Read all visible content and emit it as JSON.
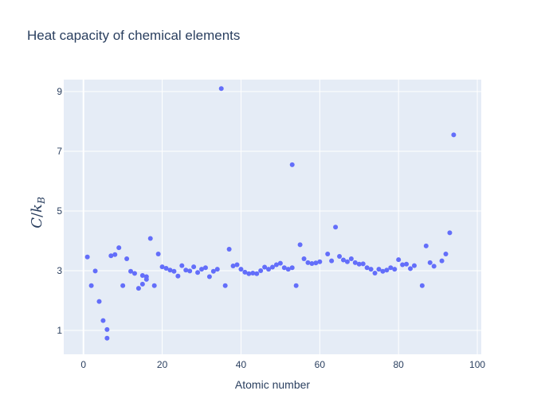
{
  "chart_data": {
    "type": "scatter",
    "title": "Heat capacity of chemical elements",
    "xlabel": "Atomic number",
    "ylabel": "C/k_B",
    "xlim": [
      -5,
      101
    ],
    "ylim": [
      0.2,
      9.4
    ],
    "x_ticks": [
      0,
      20,
      40,
      60,
      80,
      100
    ],
    "y_ticks": [
      1,
      3,
      5,
      7,
      9
    ],
    "grid": true,
    "legend": false,
    "marker_color": "#636efa",
    "background_color": "#e5ecf6",
    "points": [
      [
        1,
        3.46
      ],
      [
        2,
        2.5
      ],
      [
        3,
        2.99
      ],
      [
        4,
        1.97
      ],
      [
        5,
        1.33
      ],
      [
        6,
        1.03
      ],
      [
        6,
        0.74
      ],
      [
        7,
        3.5
      ],
      [
        8,
        3.54
      ],
      [
        9,
        3.77
      ],
      [
        10,
        2.5
      ],
      [
        11,
        3.4
      ],
      [
        12,
        2.98
      ],
      [
        13,
        2.91
      ],
      [
        14,
        2.41
      ],
      [
        15,
        2.55
      ],
      [
        15,
        2.84
      ],
      [
        16,
        2.71
      ],
      [
        16,
        2.8
      ],
      [
        17,
        4.08
      ],
      [
        18,
        2.5
      ],
      [
        19,
        3.56
      ],
      [
        20,
        3.13
      ],
      [
        21,
        3.08
      ],
      [
        22,
        3.02
      ],
      [
        23,
        2.98
      ],
      [
        24,
        2.82
      ],
      [
        25,
        3.17
      ],
      [
        26,
        3.02
      ],
      [
        27,
        2.99
      ],
      [
        28,
        3.13
      ],
      [
        29,
        2.94
      ],
      [
        30,
        3.05
      ],
      [
        31,
        3.1
      ],
      [
        32,
        2.8
      ],
      [
        33,
        2.98
      ],
      [
        34,
        3.05
      ],
      [
        35,
        9.1
      ],
      [
        36,
        2.5
      ],
      [
        37,
        3.72
      ],
      [
        38,
        3.16
      ],
      [
        39,
        3.2
      ],
      [
        40,
        3.05
      ],
      [
        41,
        2.95
      ],
      [
        42,
        2.9
      ],
      [
        43,
        2.92
      ],
      [
        44,
        2.9
      ],
      [
        45,
        3.0
      ],
      [
        46,
        3.12
      ],
      [
        47,
        3.05
      ],
      [
        48,
        3.12
      ],
      [
        49,
        3.2
      ],
      [
        50,
        3.25
      ],
      [
        51,
        3.1
      ],
      [
        52,
        3.05
      ],
      [
        53,
        6.55
      ],
      [
        53,
        3.1
      ],
      [
        54,
        2.5
      ],
      [
        55,
        3.87
      ],
      [
        56,
        3.4
      ],
      [
        57,
        3.27
      ],
      [
        58,
        3.24
      ],
      [
        59,
        3.26
      ],
      [
        60,
        3.3
      ],
      [
        62,
        3.56
      ],
      [
        63,
        3.33
      ],
      [
        64,
        4.46
      ],
      [
        65,
        3.48
      ],
      [
        66,
        3.36
      ],
      [
        67,
        3.3
      ],
      [
        68,
        3.4
      ],
      [
        69,
        3.27
      ],
      [
        70,
        3.22
      ],
      [
        71,
        3.23
      ],
      [
        72,
        3.1
      ],
      [
        73,
        3.05
      ],
      [
        74,
        2.92
      ],
      [
        75,
        3.05
      ],
      [
        76,
        2.98
      ],
      [
        77,
        3.02
      ],
      [
        78,
        3.1
      ],
      [
        79,
        3.05
      ],
      [
        80,
        3.37
      ],
      [
        81,
        3.2
      ],
      [
        82,
        3.22
      ],
      [
        83,
        3.07
      ],
      [
        84,
        3.17
      ],
      [
        86,
        2.5
      ],
      [
        87,
        3.83
      ],
      [
        88,
        3.27
      ],
      [
        89,
        3.15
      ],
      [
        91,
        3.33
      ],
      [
        92,
        3.56
      ],
      [
        93,
        4.27
      ],
      [
        94,
        7.55
      ]
    ]
  }
}
